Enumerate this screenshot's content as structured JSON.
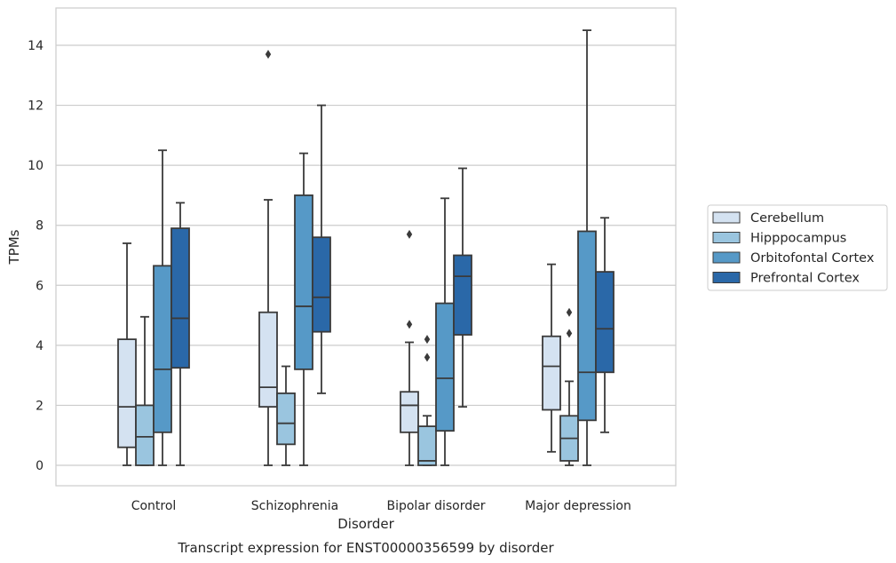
{
  "chart_data": {
    "type": "boxplot",
    "title": "",
    "caption": "Transcript expression for ENST00000356599 by disorder",
    "xlabel": "Disorder",
    "ylabel": "TPMs",
    "ylim": [
      -0.7,
      15.2
    ],
    "yticks": [
      0,
      2,
      4,
      6,
      8,
      10,
      12,
      14
    ],
    "grid": true,
    "legend_position": "right",
    "categories": [
      "Control",
      "Schizophrenia",
      "Bipolar disorder",
      "Major depression"
    ],
    "series": [
      {
        "name": "Cerebellum",
        "color": "#d4e2f1",
        "boxes": [
          {
            "whislo": 0.0,
            "q1": 0.6,
            "med": 1.95,
            "q3": 4.2,
            "whishi": 7.4,
            "fliers": []
          },
          {
            "whislo": 0.0,
            "q1": 1.95,
            "med": 2.6,
            "q3": 5.1,
            "whishi": 8.85,
            "fliers": [
              13.7
            ]
          },
          {
            "whislo": 0.0,
            "q1": 1.1,
            "med": 2.0,
            "q3": 2.45,
            "whishi": 4.1,
            "fliers": [
              4.7,
              7.7
            ]
          },
          {
            "whislo": 0.45,
            "q1": 1.85,
            "med": 3.3,
            "q3": 4.3,
            "whishi": 6.7,
            "fliers": []
          }
        ]
      },
      {
        "name": "Hipppocampus",
        "color": "#9ac5df",
        "boxes": [
          {
            "whislo": 0.0,
            "q1": 0.0,
            "med": 0.95,
            "q3": 2.0,
            "whishi": 4.95,
            "fliers": []
          },
          {
            "whislo": 0.0,
            "q1": 0.7,
            "med": 1.4,
            "q3": 2.4,
            "whishi": 3.3,
            "fliers": []
          },
          {
            "whislo": 0.0,
            "q1": 0.0,
            "med": 0.15,
            "q3": 1.3,
            "whishi": 1.65,
            "fliers": [
              3.6,
              4.2
            ]
          },
          {
            "whislo": 0.0,
            "q1": 0.15,
            "med": 0.9,
            "q3": 1.65,
            "whishi": 2.8,
            "fliers": [
              4.4,
              5.1
            ]
          }
        ]
      },
      {
        "name": "Orbitofontal Cortex",
        "color": "#5699c7",
        "boxes": [
          {
            "whislo": 0.0,
            "q1": 1.1,
            "med": 3.2,
            "q3": 6.65,
            "whishi": 10.5,
            "fliers": []
          },
          {
            "whislo": 0.0,
            "q1": 3.2,
            "med": 5.3,
            "q3": 9.0,
            "whishi": 10.4,
            "fliers": []
          },
          {
            "whislo": 0.0,
            "q1": 1.15,
            "med": 2.9,
            "q3": 5.4,
            "whishi": 8.9,
            "fliers": []
          },
          {
            "whislo": 0.0,
            "q1": 1.5,
            "med": 3.1,
            "q3": 7.8,
            "whishi": 14.5,
            "fliers": []
          }
        ]
      },
      {
        "name": "Prefrontal Cortex",
        "color": "#2a68a8",
        "boxes": [
          {
            "whislo": 0.0,
            "q1": 3.25,
            "med": 4.9,
            "q3": 7.9,
            "whishi": 8.75,
            "fliers": []
          },
          {
            "whislo": 2.4,
            "q1": 4.45,
            "med": 5.6,
            "q3": 7.6,
            "whishi": 12.0,
            "fliers": []
          },
          {
            "whislo": 1.95,
            "q1": 4.35,
            "med": 6.3,
            "q3": 7.0,
            "whishi": 9.9,
            "fliers": []
          },
          {
            "whislo": 1.1,
            "q1": 3.1,
            "med": 4.55,
            "q3": 6.45,
            "whishi": 8.25,
            "fliers": []
          }
        ]
      }
    ]
  }
}
